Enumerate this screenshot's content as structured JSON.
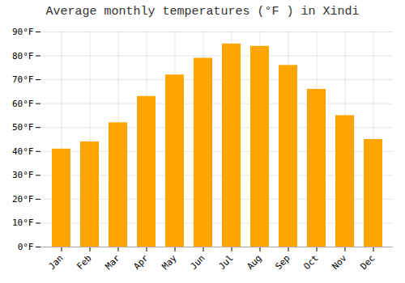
{
  "chart_data": {
    "type": "bar",
    "title": "Average monthly temperatures (°F ) in Xindi",
    "categories": [
      "Jan",
      "Feb",
      "Mar",
      "Apr",
      "May",
      "Jun",
      "Jul",
      "Aug",
      "Sep",
      "Oct",
      "Nov",
      "Dec"
    ],
    "values": [
      41,
      44,
      52,
      63,
      72,
      79,
      85,
      84,
      76,
      66,
      55,
      45
    ],
    "color": "#FFA500",
    "ylim": [
      0,
      90
    ],
    "yticks": [
      {
        "value": 0,
        "label": "0°F"
      },
      {
        "value": 10,
        "label": "10°F"
      },
      {
        "value": 20,
        "label": "20°F"
      },
      {
        "value": 30,
        "label": "30°F"
      },
      {
        "value": 40,
        "label": "40°F"
      },
      {
        "value": 50,
        "label": "50°F"
      },
      {
        "value": 60,
        "label": "60°F"
      },
      {
        "value": 70,
        "label": "70°F"
      },
      {
        "value": 80,
        "label": "80°F"
      },
      {
        "value": 90,
        "label": "90°F"
      }
    ],
    "grid": true
  }
}
